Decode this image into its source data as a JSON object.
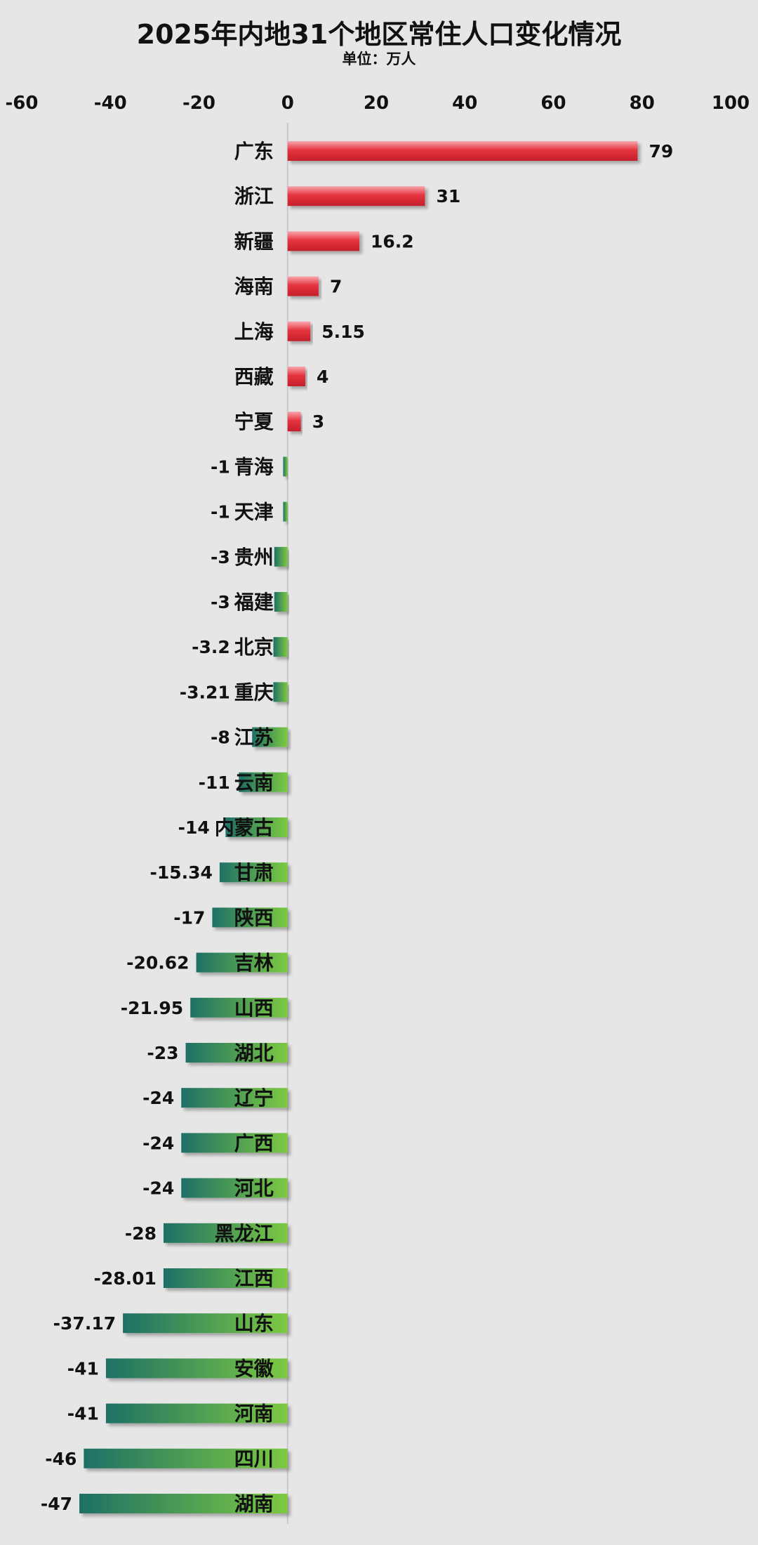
{
  "chart_data": {
    "type": "bar",
    "orientation": "horizontal",
    "title": "2025年内地31个地区常住人口变化情况",
    "subtitle": "单位：万人",
    "xlim": [
      -60,
      100
    ],
    "xticks": [
      "-60",
      "-40",
      "-20",
      "0",
      "20",
      "40",
      "60",
      "80",
      "100"
    ],
    "grid": false,
    "colors": {
      "positive": "#e0333f",
      "negative_dark": "#1e7066",
      "negative_light": "#7cc942"
    },
    "categories": [
      "广东",
      "浙江",
      "新疆",
      "海南",
      "上海",
      "西藏",
      "宁夏",
      "青海",
      "天津",
      "贵州",
      "福建",
      "北京",
      "重庆",
      "江苏",
      "云南",
      "内蒙古",
      "甘肃",
      "陕西",
      "吉林",
      "山西",
      "湖北",
      "辽宁",
      "广西",
      "河北",
      "黑龙江",
      "江西",
      "山东",
      "安徽",
      "河南",
      "四川",
      "湖南"
    ],
    "values": [
      79,
      31,
      16.2,
      7,
      5.15,
      4,
      3,
      -1,
      -1,
      -3,
      -3,
      -3.2,
      -3.21,
      -8,
      -11,
      -14,
      -15.34,
      -17,
      -20.62,
      -21.95,
      -23,
      -24,
      -24,
      -24,
      -28,
      -28.01,
      -37.17,
      -41,
      -41,
      -46,
      -47
    ],
    "value_labels": [
      "79",
      "31",
      "16.2",
      "7",
      "5.15",
      "4",
      "3",
      "-1",
      "-1",
      "-3",
      "-3",
      "-3.2",
      "-3.21",
      "-8",
      "-11",
      "-14",
      "-15.34",
      "-17",
      "-20.62",
      "-21.95",
      "-23",
      "-24",
      "-24",
      "-24",
      "-28",
      "-28.01",
      "-37.17",
      "-41",
      "-41",
      "-46",
      "-47"
    ]
  }
}
